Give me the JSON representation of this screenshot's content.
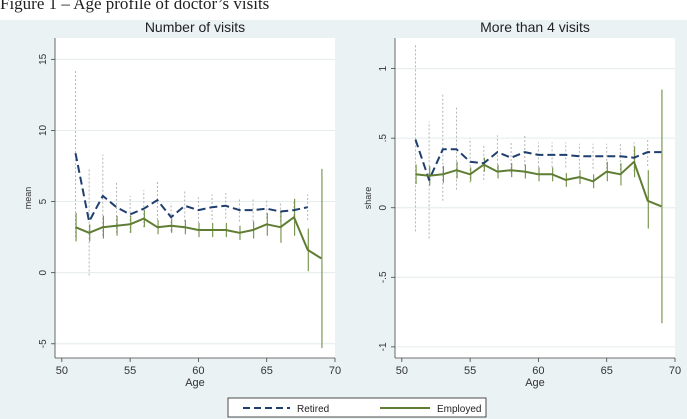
{
  "caption": "Figure 1 – Age profile of doctor’s visits",
  "colors": {
    "background_outer": "#eaf2f3",
    "plot_bg": "#ffffff",
    "gridline": "#e4ecee",
    "retired": "#1f3f6e",
    "employed": "#5f7d33",
    "retired_ci": "#b4b4b4",
    "employed_ci": "#6f8f45",
    "axis_text": "#333333"
  },
  "legend": {
    "position": "bottom",
    "retired_label": "Retired",
    "employed_label": "Employed"
  },
  "chart_data": [
    {
      "type": "line",
      "title": "Number of visits",
      "xlabel": "Age",
      "ylabel": "mean",
      "xlim": [
        49.5,
        70
      ],
      "ylim": [
        -6,
        16.5
      ],
      "xticks": [
        50,
        55,
        60,
        65,
        70
      ],
      "yticks": [
        -5,
        0,
        5,
        10,
        15
      ],
      "x": [
        51,
        52,
        53,
        54,
        55,
        56,
        57,
        58,
        59,
        60,
        61,
        62,
        63,
        64,
        65,
        66,
        67,
        68,
        69
      ],
      "series": [
        {
          "name": "Retired",
          "style": "dashed",
          "values": [
            8.4,
            3.6,
            5.4,
            4.6,
            4.1,
            4.5,
            5.1,
            3.9,
            4.7,
            4.4,
            4.6,
            4.7,
            4.4,
            4.4,
            4.5,
            4.3,
            4.4,
            4.6,
            null
          ],
          "ci_low": [
            2.5,
            -0.2,
            2.6,
            2.8,
            2.8,
            3.2,
            3.7,
            2.9,
            3.6,
            3.5,
            3.7,
            3.8,
            3.6,
            3.6,
            3.8,
            3.6,
            3.7,
            3.7,
            null
          ],
          "ci_high": [
            14.2,
            7.3,
            8.3,
            6.4,
            5.4,
            5.8,
            6.5,
            4.9,
            5.8,
            5.3,
            5.5,
            5.6,
            5.2,
            5.2,
            5.2,
            5.0,
            5.1,
            5.5,
            null
          ]
        },
        {
          "name": "Employed",
          "style": "solid",
          "values": [
            3.2,
            2.8,
            3.2,
            3.3,
            3.4,
            3.8,
            3.2,
            3.3,
            3.2,
            3.0,
            3.0,
            3.0,
            2.8,
            3.0,
            3.4,
            3.2,
            3.9,
            1.6,
            1.0
          ],
          "ci_low": [
            2.2,
            2.2,
            2.4,
            2.6,
            2.8,
            3.2,
            2.7,
            2.8,
            2.7,
            2.5,
            2.5,
            2.5,
            2.3,
            2.4,
            2.6,
            2.1,
            2.6,
            0.1,
            -5.3
          ],
          "ci_high": [
            4.2,
            3.4,
            4.0,
            4.0,
            4.0,
            4.4,
            3.7,
            3.8,
            3.7,
            3.5,
            3.5,
            3.5,
            3.3,
            3.6,
            4.2,
            4.3,
            5.2,
            3.1,
            7.3
          ]
        }
      ]
    },
    {
      "type": "line",
      "title": "More than 4 visits",
      "xlabel": "Age",
      "ylabel": "share",
      "xlim": [
        49.5,
        70
      ],
      "ylim": [
        -1.08,
        1.22
      ],
      "xticks": [
        50,
        55,
        60,
        65,
        70
      ],
      "yticks": [
        -1,
        -0.5,
        0,
        0.5,
        1
      ],
      "ytick_labels": [
        "-1",
        "-.5",
        "0",
        ".5",
        "1"
      ],
      "x": [
        51,
        52,
        53,
        54,
        55,
        56,
        57,
        58,
        59,
        60,
        61,
        62,
        63,
        64,
        65,
        66,
        67,
        68,
        69
      ],
      "series": [
        {
          "name": "Retired",
          "style": "dashed",
          "values": [
            0.49,
            0.2,
            0.42,
            0.42,
            0.33,
            0.32,
            0.4,
            0.36,
            0.4,
            0.38,
            0.38,
            0.38,
            0.37,
            0.37,
            0.37,
            0.37,
            0.36,
            0.4,
            0.4
          ],
          "ci_low": [
            -0.17,
            -0.22,
            0.05,
            0.13,
            0.18,
            0.2,
            0.28,
            0.25,
            0.3,
            0.29,
            0.29,
            0.29,
            0.28,
            0.28,
            0.28,
            0.27,
            0.26,
            0.3,
            null
          ],
          "ci_high": [
            1.17,
            0.62,
            0.82,
            0.72,
            0.5,
            0.45,
            0.52,
            0.47,
            0.52,
            0.47,
            0.47,
            0.47,
            0.46,
            0.46,
            0.46,
            0.47,
            0.47,
            0.5,
            null
          ]
        },
        {
          "name": "Employed",
          "style": "solid",
          "values": [
            0.24,
            0.23,
            0.24,
            0.27,
            0.24,
            0.31,
            0.26,
            0.27,
            0.26,
            0.24,
            0.24,
            0.2,
            0.22,
            0.19,
            0.26,
            0.24,
            0.33,
            0.05,
            0.01
          ],
          "ci_low": [
            0.17,
            0.16,
            0.18,
            0.21,
            0.19,
            0.26,
            0.21,
            0.22,
            0.21,
            0.19,
            0.19,
            0.15,
            0.17,
            0.14,
            0.19,
            0.16,
            0.22,
            -0.15,
            -0.83
          ],
          "ci_high": [
            0.31,
            0.3,
            0.3,
            0.33,
            0.29,
            0.36,
            0.31,
            0.32,
            0.31,
            0.29,
            0.29,
            0.25,
            0.27,
            0.24,
            0.33,
            0.32,
            0.44,
            0.27,
            0.85
          ]
        }
      ]
    }
  ]
}
